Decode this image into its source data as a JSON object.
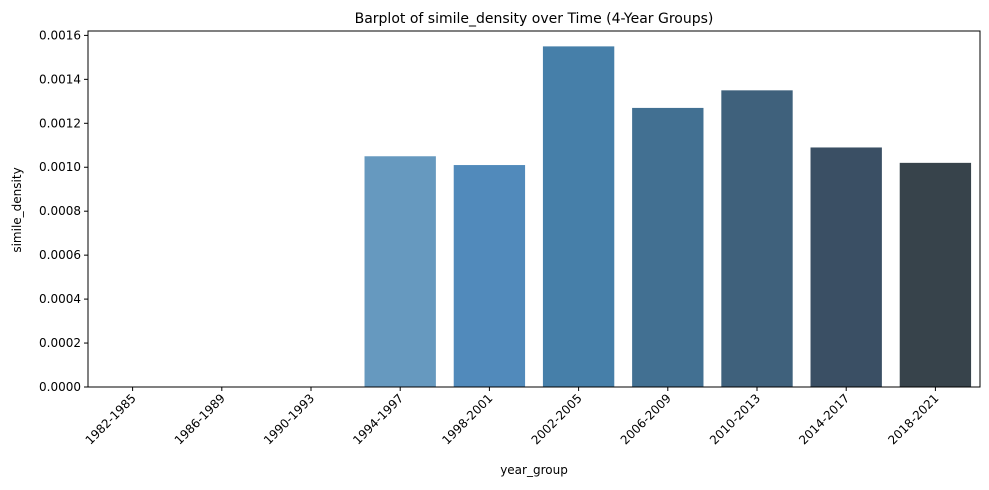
{
  "chart_data": {
    "type": "bar",
    "title": "Barplot of simile_density over Time (4-Year Groups)",
    "xlabel": "year_group",
    "ylabel": "simile_density",
    "categories": [
      "1982-1985",
      "1986-1989",
      "1990-1993",
      "1994-1997",
      "1998-2001",
      "2002-2005",
      "2006-2009",
      "2010-2013",
      "2014-2017",
      "2018-2021"
    ],
    "values": [
      0,
      0,
      0,
      0.00105,
      0.00101,
      0.00155,
      0.00127,
      0.00135,
      0.00109,
      0.00102
    ],
    "colors": [
      "#6a9dc4",
      "#6a9dc4",
      "#6a9dc4",
      "#6699bf",
      "#518abb",
      "#467fa9",
      "#427092",
      "#3f617c",
      "#3a4f64",
      "#37434b"
    ],
    "ylim": [
      0,
      0.00162
    ],
    "yticks": [
      "0.0000",
      "0.0002",
      "0.0004",
      "0.0006",
      "0.0008",
      "0.0010",
      "0.0012",
      "0.0014",
      "0.0016"
    ],
    "ytick_values": [
      0,
      0.0002,
      0.0004,
      0.0006,
      0.0008,
      0.001,
      0.0012,
      0.0014,
      0.0016
    ],
    "grid": false,
    "legend": "none"
  }
}
